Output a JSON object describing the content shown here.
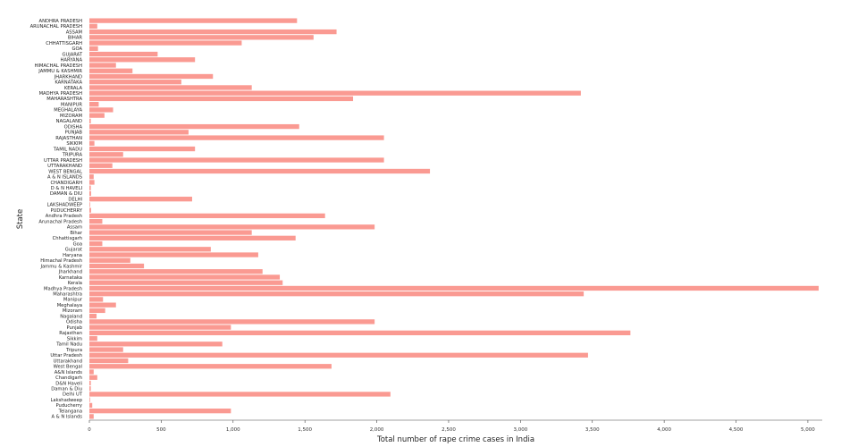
{
  "chart_data": {
    "type": "bar",
    "orientation": "horizontal",
    "title": "",
    "xlabel": "Total number of rape crime cases in India",
    "ylabel": "State",
    "xlim": [
      0,
      5100
    ],
    "xticks": [
      0,
      500,
      1000,
      1500,
      2000,
      2500,
      3000,
      3500,
      4000,
      4500,
      5000
    ],
    "xtick_labels": [
      "0",
      "500",
      "1,000",
      "1,500",
      "2,000",
      "2,500",
      "3,000",
      "3,500",
      "4,000",
      "4,500",
      "5,000"
    ],
    "grid": false,
    "legend": "none",
    "bar_color": "#f8786d",
    "categories": [
      "ANDHRA PRADESH",
      "ARUNACHAL PRADESH",
      "ASSAM",
      "BIHAR",
      "CHHATTISGARH",
      "GOA",
      "GUJARAT",
      "HARYANA",
      "HIMACHAL PRADESH",
      "JAMMU & KASHMIR",
      "JHARKHAND",
      "KARNATAKA",
      "KERALA",
      "MADHYA PRADESH",
      "MAHARASHTRA",
      "MANIPUR",
      "MEGHALAYA",
      "MIZORAM",
      "NAGALAND",
      "ODISHA",
      "PUNJAB",
      "RAJASTHAN",
      "SIKKIM",
      "TAMIL NADU",
      "TRIPURA",
      "UTTAR PRADESH",
      "UTTARAKHAND",
      "WEST BENGAL",
      "A & N ISLANDS",
      "CHANDIGARH",
      "D & N HAVELI",
      "DAMAN & DIU",
      "DELHI",
      "LAKSHADWEEP",
      "PUDUCHERRY",
      "Andhra Pradesh",
      "Arunachal Pradesh",
      "Assam",
      "Bihar",
      "Chhattisgarh",
      "Goa",
      "Gujarat",
      "Haryana",
      "Himachal Pradesh",
      "Jammu & Kashmir",
      "Jharkhand",
      "Karnataka",
      "Kerala",
      "Madhya Pradesh",
      "Maharashtra",
      "Manipur",
      "Meghalaya",
      "Mizoram",
      "Nagaland",
      "Odisha",
      "Punjab",
      "Rajasthan",
      "Sikkim",
      "Tamil Nadu",
      "Tripura",
      "Uttar Pradesh",
      "Uttarakhand",
      "West Bengal",
      "A&N Islands",
      "Chandigarh",
      "D&N Haveli",
      "Daman & Diu",
      "Delhi UT",
      "Lakshadweep",
      "Puducherry",
      "Telangana",
      "A & N Islands"
    ],
    "values": [
      1445,
      55,
      1720,
      1560,
      1060,
      60,
      475,
      735,
      185,
      300,
      860,
      640,
      1130,
      3420,
      1835,
      65,
      165,
      105,
      10,
      1460,
      690,
      2050,
      35,
      735,
      235,
      2050,
      160,
      2370,
      30,
      35,
      10,
      12,
      715,
      5,
      12,
      1640,
      90,
      1985,
      1130,
      1435,
      90,
      845,
      1175,
      285,
      380,
      1205,
      1325,
      1345,
      5075,
      3440,
      95,
      185,
      110,
      50,
      1985,
      985,
      3765,
      55,
      925,
      235,
      3470,
      270,
      1685,
      30,
      55,
      10,
      10,
      2095,
      5,
      20,
      985,
      30
    ]
  }
}
